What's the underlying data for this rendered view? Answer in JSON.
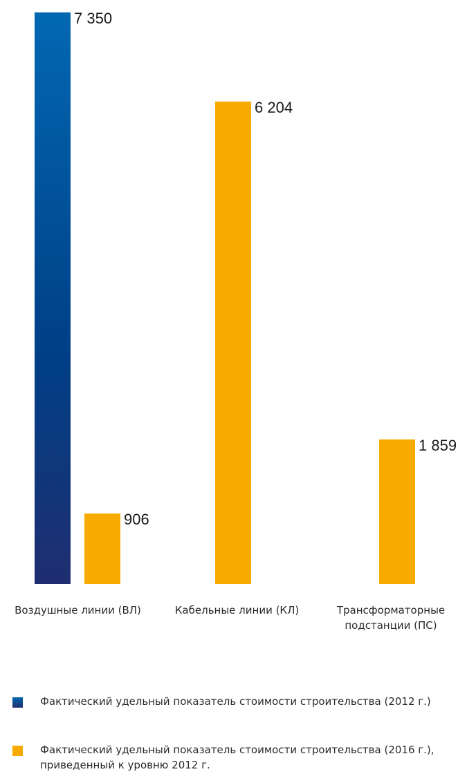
{
  "chart_data": {
    "type": "bar",
    "categories": [
      "Воздушные линии (ВЛ)",
      "Кабельные линии (КЛ)",
      "Трансформаторные\nподстанции (ПС)"
    ],
    "series": [
      {
        "name": "Фактический удельный показатель стоимости строительства (2012 г.)",
        "values": [
          7350,
          null,
          null
        ],
        "value_labels": [
          "7 350",
          "",
          ""
        ]
      },
      {
        "name": "Фактический удельный показатель стоимости строительства (2016 г.), приведенный к уровню 2012 г.",
        "values": [
          906,
          6204,
          1859
        ],
        "value_labels": [
          "906",
          "6 204",
          "1 859"
        ]
      }
    ],
    "ylim": [
      0,
      7350
    ],
    "grid": false,
    "legend_position": "bottom",
    "colors": {
      "series1_top": "#0268B2",
      "series1_mid": "#003F86",
      "series1_bottom": "#1F2E70",
      "series2": "#F7AB00"
    }
  },
  "legend": [
    {
      "label": "Фактический удельный показатель стоимости строительства (2012 г.)",
      "color": "#0A4F9C"
    },
    {
      "label": "Фактический удельный показатель стоимости строительства (2016 г.), приведенный к уровню 2012 г.",
      "color": "#F7AB00"
    }
  ]
}
